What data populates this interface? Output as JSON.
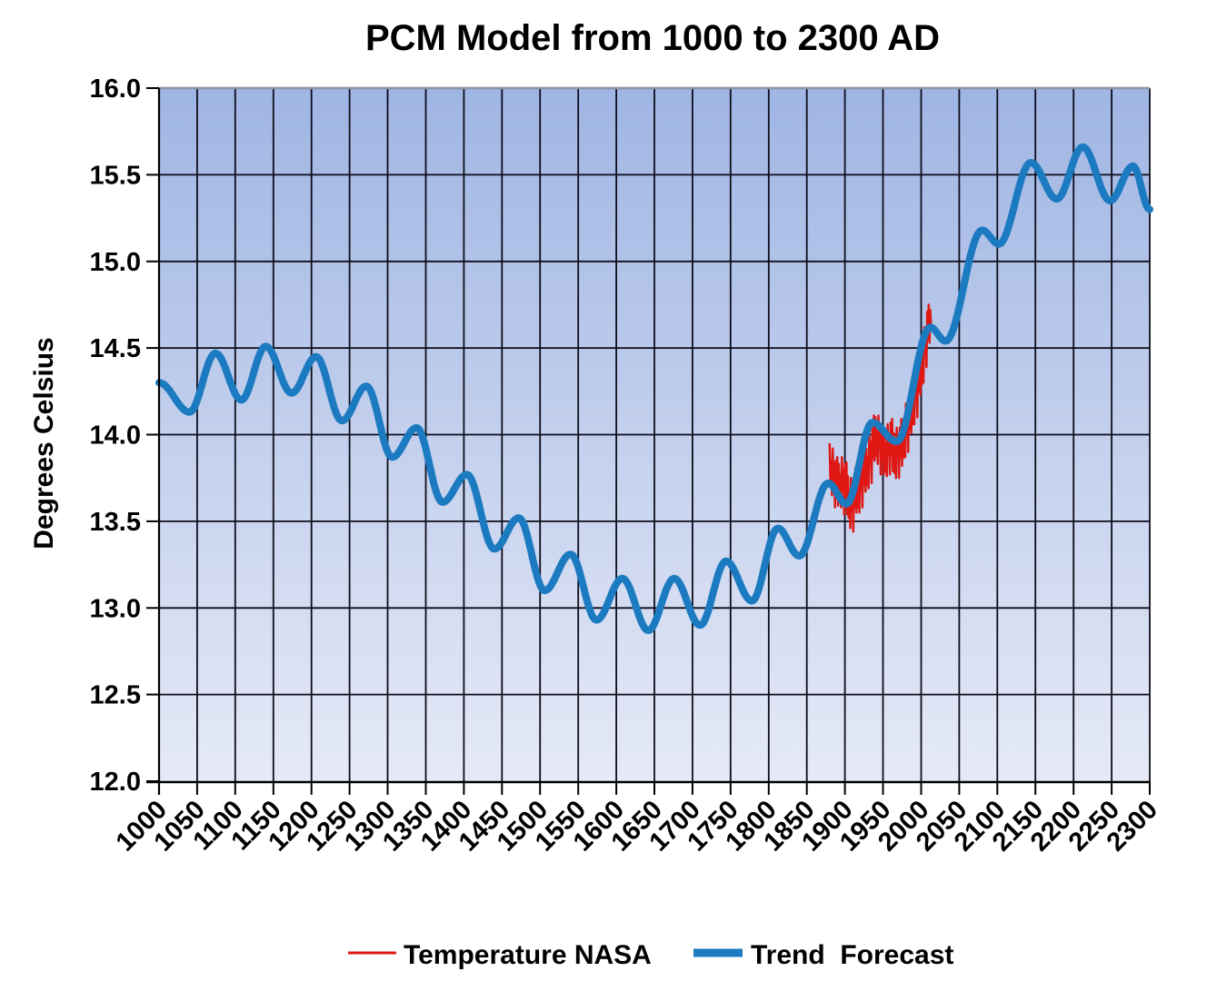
{
  "title": "PCM Model from 1000 to 2300 AD",
  "y_axis": {
    "label": "Degrees Celsius",
    "tick_labels": [
      "12.0",
      "12.5",
      "13.0",
      "13.5",
      "14.0",
      "14.5",
      "15.0",
      "15.5",
      "16.0"
    ]
  },
  "x_axis": {
    "tick_labels": [
      1000,
      1050,
      1100,
      1150,
      1200,
      1250,
      1300,
      1350,
      1400,
      1450,
      1500,
      1550,
      1600,
      1650,
      1700,
      1750,
      1800,
      1850,
      1900,
      1950,
      2000,
      2050,
      2100,
      2150,
      2200,
      2250,
      2300
    ]
  },
  "legend": {
    "items": [
      {
        "label": "Temperature NASA",
        "color": "#e01814",
        "line_width": 3
      },
      {
        "label": "Trend  Forecast",
        "color": "#1b7ac0",
        "line_width": 9
      }
    ]
  },
  "colors": {
    "plot_bg_top": "#9fb5e3",
    "plot_bg_bottom": "#e6eaf7",
    "gridline": "#0d0d1a",
    "axis": "#000000",
    "plot_border_top": "#8c95a6",
    "temperature_series": "#e01814",
    "trend_series": "#1b7ac0"
  },
  "chart_data": {
    "type": "line",
    "title": "PCM Model from 1000 to 2300 AD",
    "xlabel": "",
    "ylabel": "Degrees Celsius",
    "xlim": [
      1000,
      2300
    ],
    "ylim": [
      12.0,
      16.0
    ],
    "x_tick_step": 50,
    "y_tick_step": 0.5,
    "grid": true,
    "legend_position": "bottom",
    "series": [
      {
        "name": "Temperature NASA",
        "color": "#e01814",
        "width": 2.5,
        "x_start": 1880,
        "x_step": 1,
        "values": [
          13.95,
          13.72,
          13.85,
          13.65,
          13.92,
          13.73,
          13.84,
          13.58,
          13.85,
          13.66,
          13.87,
          13.59,
          13.83,
          13.61,
          13.77,
          13.58,
          13.87,
          13.68,
          13.8,
          13.54,
          13.83,
          13.63,
          13.84,
          13.54,
          13.76,
          13.52,
          13.66,
          13.46,
          13.75,
          13.56,
          13.67,
          13.44,
          13.74,
          13.58,
          13.81,
          13.55,
          13.79,
          13.58,
          13.73,
          13.55,
          13.85,
          13.68,
          13.81,
          13.58,
          13.88,
          13.71,
          13.94,
          13.67,
          13.92,
          13.71,
          13.87,
          13.69,
          13.99,
          13.83,
          13.96,
          13.72,
          14.03,
          13.87,
          14.11,
          13.85,
          14.1,
          13.88,
          14.02,
          13.83,
          14.11,
          13.93,
          14.03,
          13.77,
          14.04,
          13.85,
          14.05,
          13.77,
          14.01,
          13.79,
          13.95,
          13.76,
          14.06,
          13.89,
          14.01,
          13.77,
          14.07,
          13.88,
          14.09,
          13.79,
          14.01,
          13.78,
          13.93,
          13.75,
          14.04,
          13.87,
          13.99,
          13.75,
          14.04,
          13.87,
          14.09,
          13.82,
          14.07,
          13.87,
          14.04,
          13.87,
          14.18,
          14.01,
          14.14,
          13.9,
          14.2,
          14.03,
          14.27,
          14.01,
          14.26,
          14.06,
          14.23,
          14.06,
          14.36,
          14.2,
          14.33,
          14.1,
          14.41,
          14.25,
          14.49,
          14.23,
          14.48,
          14.29,
          14.47,
          14.3,
          14.62,
          14.47,
          14.62,
          14.39,
          14.71,
          14.55,
          14.75,
          14.53,
          14.72,
          14.62
        ]
      },
      {
        "name": "Trend Forecast",
        "color": "#1b7ac0",
        "width": 8,
        "interpolation": "cosine-between-extrema",
        "points": [
          [
            1000,
            14.3
          ],
          [
            1040,
            14.13
          ],
          [
            1074,
            14.47
          ],
          [
            1108,
            14.2
          ],
          [
            1140,
            14.51
          ],
          [
            1174,
            14.24
          ],
          [
            1206,
            14.45
          ],
          [
            1240,
            14.08
          ],
          [
            1272,
            14.28
          ],
          [
            1306,
            13.87
          ],
          [
            1338,
            14.04
          ],
          [
            1372,
            13.61
          ],
          [
            1404,
            13.77
          ],
          [
            1440,
            13.34
          ],
          [
            1472,
            13.52
          ],
          [
            1506,
            13.1
          ],
          [
            1540,
            13.31
          ],
          [
            1574,
            12.93
          ],
          [
            1608,
            13.17
          ],
          [
            1642,
            12.87
          ],
          [
            1676,
            13.17
          ],
          [
            1710,
            12.9
          ],
          [
            1744,
            13.27
          ],
          [
            1778,
            13.04
          ],
          [
            1812,
            13.46
          ],
          [
            1840,
            13.3
          ],
          [
            1878,
            13.72
          ],
          [
            1902,
            13.6
          ],
          [
            1936,
            14.07
          ],
          [
            1968,
            13.96
          ],
          [
            2012,
            14.62
          ],
          [
            2032,
            14.54
          ],
          [
            2080,
            15.18
          ],
          [
            2102,
            15.1
          ],
          [
            2144,
            15.57
          ],
          [
            2178,
            15.36
          ],
          [
            2212,
            15.66
          ],
          [
            2248,
            15.35
          ],
          [
            2278,
            15.55
          ],
          [
            2300,
            15.3
          ]
        ]
      }
    ]
  }
}
